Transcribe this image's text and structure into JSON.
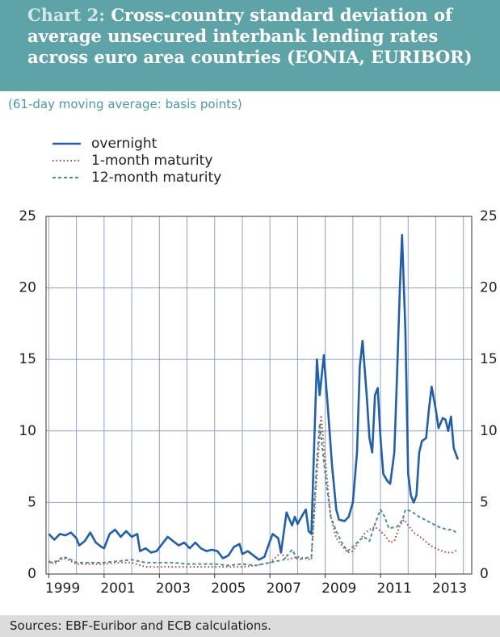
{
  "chart_data": {
    "type": "line",
    "chart_label": "Chart 2:",
    "title": "Cross-country standard deviation of average unsecured interbank lending rates across euro area countries (EONIA, EURIBOR)",
    "subtitle": "(61-day moving average: basis points)",
    "source": "Sources: EBF-Euribor and ECB calculations.",
    "xlim": [
      1998.9,
      2014.3
    ],
    "xgrid": [
      1999,
      2000,
      2001,
      2002,
      2003,
      2004,
      2005,
      2006,
      2007,
      2008,
      2009,
      2010,
      2011,
      2012,
      2013,
      2014
    ],
    "xticks": [
      {
        "value": 1999,
        "label": "1999"
      },
      {
        "value": 2001,
        "label": "2001"
      },
      {
        "value": 2003,
        "label": "2003"
      },
      {
        "value": 2005,
        "label": "2005"
      },
      {
        "value": 2007,
        "label": "2007"
      },
      {
        "value": 2009,
        "label": "2009"
      },
      {
        "value": 2011,
        "label": "2011"
      },
      {
        "value": 2013,
        "label": "2013"
      }
    ],
    "ylim": [
      0,
      25
    ],
    "yticks": [
      0,
      5,
      10,
      15,
      20,
      25
    ],
    "grid": true,
    "series": [
      {
        "name": "overnight",
        "color": "#1f5fb0",
        "dash": "solid",
        "x": [
          1999.0,
          1999.2,
          1999.4,
          1999.6,
          1999.8,
          2000.0,
          2000.1,
          2000.3,
          2000.5,
          2000.7,
          2000.9,
          2001.0,
          2001.2,
          2001.4,
          2001.6,
          2001.8,
          2002.0,
          2002.2,
          2002.3,
          2002.5,
          2002.7,
          2002.9,
          2003.1,
          2003.3,
          2003.5,
          2003.7,
          2003.9,
          2004.1,
          2004.3,
          2004.5,
          2004.7,
          2004.9,
          2005.1,
          2005.3,
          2005.5,
          2005.7,
          2005.9,
          2006.0,
          2006.2,
          2006.4,
          2006.6,
          2006.8,
          2007.0,
          2007.1,
          2007.3,
          2007.4,
          2007.6,
          2007.8,
          2007.9,
          2008.0,
          2008.2,
          2008.3,
          2008.4,
          2008.5,
          2008.6,
          2008.7,
          2008.8,
          2008.95,
          2009.1,
          2009.25,
          2009.4,
          2009.5,
          2009.7,
          2009.85,
          2010.0,
          2010.15,
          2010.25,
          2010.35,
          2010.5,
          2010.6,
          2010.7,
          2010.8,
          2010.9,
          2011.0,
          2011.1,
          2011.25,
          2011.35,
          2011.5,
          2011.6,
          2011.7,
          2011.78,
          2011.9,
          2012.0,
          2012.1,
          2012.2,
          2012.3,
          2012.4,
          2012.5,
          2012.65,
          2012.75,
          2012.85,
          2013.0,
          2013.1,
          2013.25,
          2013.35,
          2013.45,
          2013.55,
          2013.65,
          2013.8
        ],
        "values": [
          2.8,
          2.4,
          2.8,
          2.7,
          2.9,
          2.5,
          2.0,
          2.3,
          2.9,
          2.2,
          1.9,
          1.8,
          2.8,
          3.1,
          2.6,
          3.0,
          2.6,
          2.8,
          1.6,
          1.8,
          1.5,
          1.6,
          2.1,
          2.6,
          2.3,
          2.0,
          2.2,
          1.8,
          2.2,
          1.8,
          1.6,
          1.7,
          1.6,
          1.1,
          1.3,
          1.9,
          2.1,
          1.4,
          1.6,
          1.3,
          1.0,
          1.2,
          2.3,
          2.8,
          2.5,
          1.5,
          4.3,
          3.4,
          4.0,
          3.5,
          4.2,
          4.5,
          3.0,
          2.8,
          9.0,
          15.0,
          12.5,
          15.3,
          11.5,
          7.5,
          4.5,
          3.8,
          3.7,
          4.0,
          5.0,
          8.5,
          14.5,
          16.3,
          12.5,
          9.5,
          8.5,
          12.5,
          13.0,
          9.5,
          7.0,
          6.5,
          6.3,
          8.5,
          14.0,
          20.0,
          23.7,
          17.0,
          7.0,
          5.5,
          5.0,
          5.5,
          8.5,
          9.3,
          9.5,
          11.5,
          13.1,
          11.5,
          10.2,
          10.9,
          10.8,
          10.0,
          11.0,
          8.8,
          8.0
        ]
      },
      {
        "name": "1-month maturity",
        "color": "#c0392b",
        "dash": "dotted",
        "x": [
          1999.0,
          1999.2,
          1999.5,
          1999.7,
          2000.0,
          2000.5,
          2001.0,
          2001.5,
          2002.0,
          2002.5,
          2003.0,
          2003.5,
          2004.0,
          2004.5,
          2005.0,
          2005.5,
          2006.0,
          2006.5,
          2007.0,
          2007.4,
          2007.6,
          2008.0,
          2008.5,
          2008.7,
          2008.85,
          2009.0,
          2009.2,
          2009.4,
          2009.6,
          2009.8,
          2010.0,
          2010.2,
          2010.4,
          2010.6,
          2010.8,
          2011.0,
          2011.2,
          2011.35,
          2011.5,
          2011.7,
          2011.85,
          2012.0,
          2012.2,
          2012.5,
          2012.8,
          2013.1,
          2013.4,
          2013.6,
          2013.8
        ],
        "values": [
          0.9,
          0.7,
          1.1,
          1.0,
          0.7,
          0.7,
          0.7,
          0.8,
          0.8,
          0.5,
          0.5,
          0.5,
          0.5,
          0.5,
          0.5,
          0.5,
          0.5,
          0.6,
          0.8,
          1.5,
          1.0,
          1.2,
          1.0,
          7.0,
          11.1,
          8.0,
          4.0,
          2.5,
          2.0,
          1.5,
          1.6,
          2.2,
          2.8,
          3.1,
          3.3,
          3.0,
          2.6,
          2.2,
          2.3,
          3.4,
          3.8,
          3.4,
          2.9,
          2.5,
          2.0,
          1.7,
          1.5,
          1.5,
          1.7
        ]
      },
      {
        "name": "12-month maturity",
        "color": "#4a8f95",
        "dash": "dashed",
        "x": [
          1999.0,
          1999.3,
          1999.5,
          1999.7,
          2000.0,
          2000.5,
          2001.0,
          2001.5,
          2002.0,
          2002.5,
          2003.0,
          2003.5,
          2004.0,
          2004.5,
          2005.0,
          2005.5,
          2006.0,
          2006.5,
          2007.0,
          2007.5,
          2007.8,
          2008.0,
          2008.5,
          2008.7,
          2008.8,
          2009.0,
          2009.2,
          2009.4,
          2009.6,
          2009.8,
          2010.0,
          2010.2,
          2010.4,
          2010.6,
          2010.8,
          2011.0,
          2011.15,
          2011.3,
          2011.6,
          2011.8,
          2011.9,
          2012.1,
          2012.4,
          2012.8,
          2013.1,
          2013.4,
          2013.6,
          2013.8
        ],
        "values": [
          0.8,
          0.9,
          1.2,
          1.1,
          0.8,
          0.8,
          0.8,
          0.9,
          1.0,
          0.8,
          0.8,
          0.8,
          0.7,
          0.7,
          0.7,
          0.6,
          0.7,
          0.6,
          0.8,
          1.0,
          1.7,
          1.0,
          1.2,
          8.0,
          10.5,
          7.0,
          4.0,
          3.0,
          2.2,
          1.6,
          1.9,
          2.3,
          2.6,
          2.3,
          3.5,
          4.5,
          4.0,
          3.2,
          3.3,
          3.8,
          4.5,
          4.4,
          4.0,
          3.6,
          3.3,
          3.1,
          3.1,
          2.8
        ]
      }
    ]
  }
}
